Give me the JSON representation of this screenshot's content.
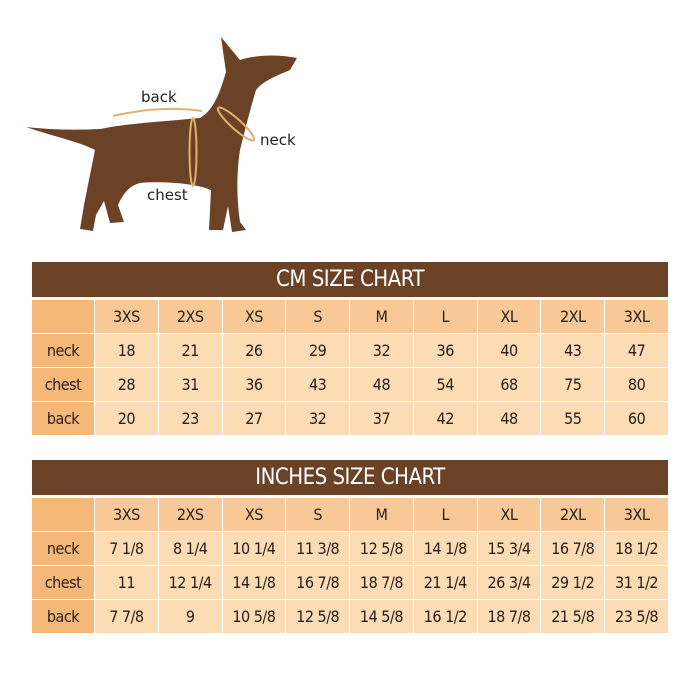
{
  "diagram": {
    "labels": {
      "back": "back",
      "neck": "neck",
      "chest": "chest"
    },
    "colors": {
      "dog": "#6b4226",
      "measure_line": "#e0b070"
    }
  },
  "colors": {
    "title_bar": "#6b4226",
    "header_row": "#f8c996",
    "label_column": "#f6b879",
    "cell": "#fbdcb4"
  },
  "cm_chart": {
    "title": "CM SIZE CHART",
    "sizes": [
      "3XS",
      "2XS",
      "XS",
      "S",
      "M",
      "L",
      "XL",
      "2XL",
      "3XL"
    ],
    "rows": [
      {
        "label": "neck",
        "values": [
          "18",
          "21",
          "26",
          "29",
          "32",
          "36",
          "40",
          "43",
          "47"
        ]
      },
      {
        "label": "chest",
        "values": [
          "28",
          "31",
          "36",
          "43",
          "48",
          "54",
          "68",
          "75",
          "80"
        ]
      },
      {
        "label": "back",
        "values": [
          "20",
          "23",
          "27",
          "32",
          "37",
          "42",
          "48",
          "55",
          "60"
        ]
      }
    ]
  },
  "inches_chart": {
    "title": "INCHES SIZE CHART",
    "sizes": [
      "3XS",
      "2XS",
      "XS",
      "S",
      "M",
      "L",
      "XL",
      "2XL",
      "3XL"
    ],
    "rows": [
      {
        "label": "neck",
        "values": [
          "7 1/8",
          "8 1/4",
          "10 1/4",
          "11 3/8",
          "12 5/8",
          "14 1/8",
          "15 3/4",
          "16 7/8",
          "18 1/2"
        ]
      },
      {
        "label": "chest",
        "values": [
          "11",
          "12 1/4",
          "14 1/8",
          "16 7/8",
          "18 7/8",
          "21 1/4",
          "26 3/4",
          "29 1/2",
          "31 1/2"
        ]
      },
      {
        "label": "back",
        "values": [
          "7 7/8",
          "9",
          "10 5/8",
          "12 5/8",
          "14 5/8",
          "16 1/2",
          "18 7/8",
          "21 5/8",
          "23 5/8"
        ]
      }
    ]
  }
}
